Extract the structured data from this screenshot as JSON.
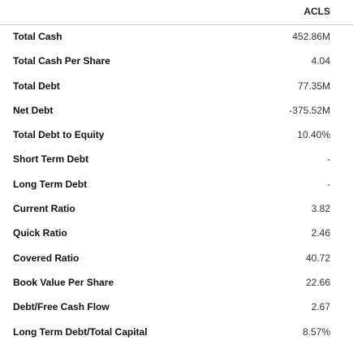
{
  "header": {
    "ticker": "ACLS"
  },
  "rows": [
    {
      "label": "Total Cash",
      "value": "452.86M"
    },
    {
      "label": "Total Cash Per Share",
      "value": "4.04"
    },
    {
      "label": "Total Debt",
      "value": "77.35M"
    },
    {
      "label": "Net Debt",
      "value": "-375.52M"
    },
    {
      "label": "Total Debt to Equity",
      "value": "10.40%"
    },
    {
      "label": "Short Term Debt",
      "value": "-"
    },
    {
      "label": "Long Term Debt",
      "value": "-"
    },
    {
      "label": "Current Ratio",
      "value": "3.82"
    },
    {
      "label": "Quick Ratio",
      "value": "2.46"
    },
    {
      "label": "Covered Ratio",
      "value": "40.72"
    },
    {
      "label": "Book Value Per Share",
      "value": "22.66"
    },
    {
      "label": "Debt/Free Cash Flow",
      "value": "2.67"
    },
    {
      "label": "Long Term Debt/Total Capital",
      "value": "8.57%"
    }
  ]
}
